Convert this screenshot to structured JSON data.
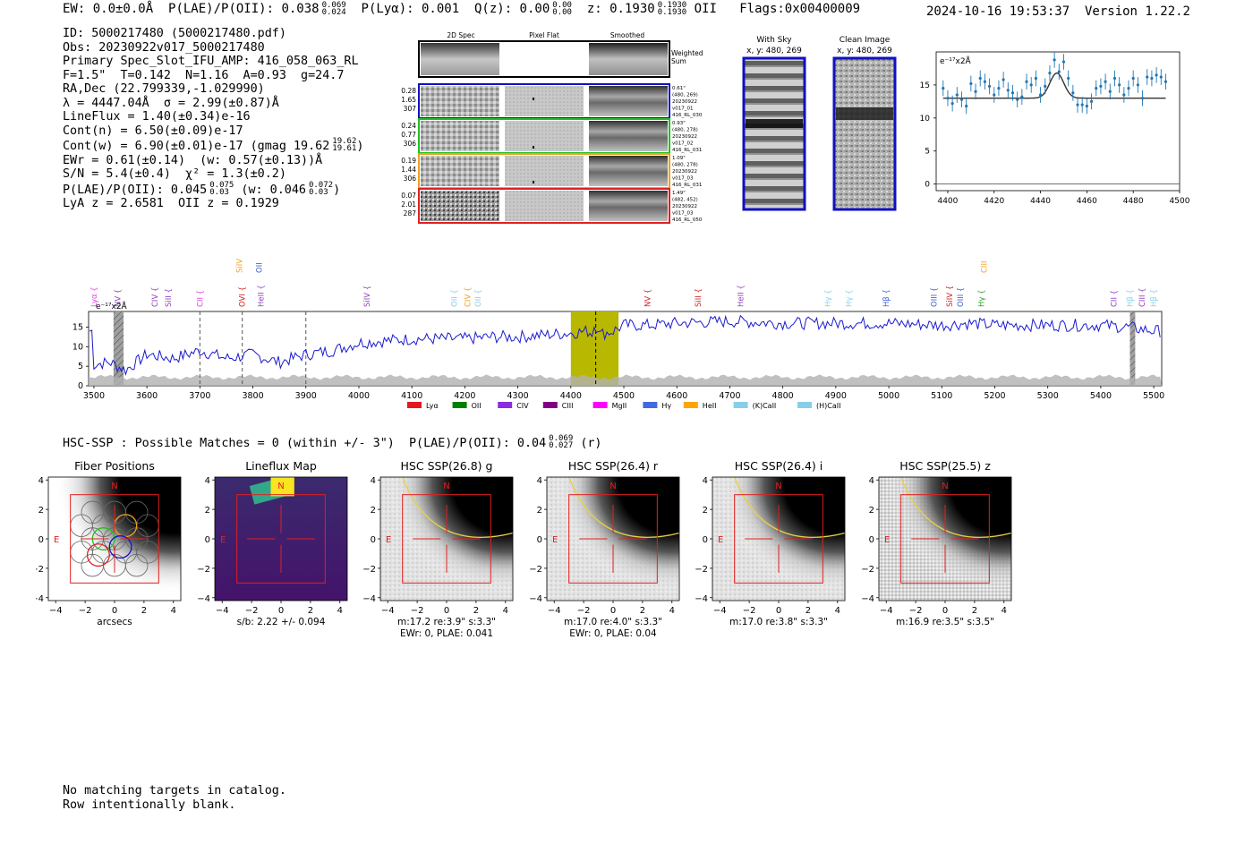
{
  "header": {
    "summary_text": "EW: 0.0±0.0Å  P(LAE)/P(OII): 0.038 0.069/0.024  P(Lyα): 0.001  Q(z): 0.00 0.00/0.00  z: 0.1930 0.1930/0.1930 OII  Flags:0x00400009",
    "ew": "EW: 0.0±0.0Å",
    "plae": "P(LAE)/P(OII): 0.038",
    "plae_hi": "0.069",
    "plae_lo": "0.024",
    "plya": "P(Lyα): 0.001",
    "qz": "Q(z): 0.00",
    "qz_hi": "0.00",
    "qz_lo": "0.00",
    "z": "z: 0.1930",
    "z_hi": "0.1930",
    "z_lo": "0.1930",
    "line": "OII",
    "flags": "Flags:0x00400009",
    "datetime_version": "2024-10-16 19:53:37  Version 1.22.2"
  },
  "info": {
    "id": "ID: 5000217480 (5000217480.pdf)",
    "obs": "Obs: 20230922v017_5000217480",
    "primary": "Primary Spec_Slot_IFU_AMP: 416_058_063_RL",
    "params": "F=1.5\"  T=0.142  N=1.16  A=0.93  g=24.7",
    "radec": "RA,Dec (22.799339,-1.029990)",
    "lambda": "λ = 4447.04Å  σ = 2.99(±0.87)Å",
    "lineflux": "LineFlux = 1.40(±0.34)e-16",
    "contn": "Cont(n) = 6.50(±0.09)e-17",
    "contw": "Cont(w) = 6.90(±0.01)e-17 (gmag 19.62",
    "contw_hi": "19.62",
    "contw_lo": "19.61",
    "contw_end": ")",
    "ewr": "EWr = 0.61(±0.14)  (w: 0.57(±0.13))Å",
    "sn": "S/N = 5.4(±0.4)  χ² = 1.3(±0.2)",
    "plae2": "P(LAE)/P(OII): 0.045",
    "plae2_hi": "0.075",
    "plae2_lo": "0.03",
    "plae2_w": "(w: 0.046",
    "plae2_w_hi": "0.072",
    "plae2_w_lo": "0.03",
    "plae2_end": ")",
    "lyaz": "LyA z = 2.6581  OII z = 0.1929"
  },
  "cutouts": {
    "col_titles": [
      "2D Spec",
      "Pixel Flat",
      "Smoothed"
    ],
    "weighted_sum": [
      "Weighted",
      "Sum"
    ],
    "rows": [
      {
        "left": [
          "0.28",
          "1.65",
          "307"
        ],
        "right": [
          "0.61\"",
          "(480, 269)",
          "20230922",
          "v017_01",
          "416_RL_030"
        ],
        "color": "#1010c0"
      },
      {
        "left": [
          "0.24",
          "0.77",
          "306"
        ],
        "right": [
          "0.93\"",
          "(480, 278)",
          "20230922",
          "v017_02",
          "416_RL_031"
        ],
        "color": "#20c020"
      },
      {
        "left": [
          "0.19",
          "1.44",
          "306"
        ],
        "right": [
          "1.09\"",
          "(480, 278)",
          "20230922",
          "v017_03",
          "416_RL_031"
        ],
        "color": "#f0a020"
      },
      {
        "left": [
          "0.07",
          "2.01",
          "287"
        ],
        "right": [
          "1.49\"",
          "(482, 452)",
          "20230922",
          "v017_03",
          "416_RL_050"
        ],
        "color": "#e02020"
      }
    ]
  },
  "sky_panels": {
    "with_sky": {
      "title": "With Sky",
      "coords": "x, y: 480, 269"
    },
    "clean": {
      "title": "Clean Image",
      "coords": "x, y: 480, 269"
    }
  },
  "colors": {
    "spectrum": "#1a1ad0",
    "fit_points": "#1f77b4",
    "noise_fill": "#b0b0b0",
    "highlight_band": "#b8b800",
    "fiber_red": "#e02020",
    "fiber_blue": "#1010d0",
    "fiber_green": "#20c020",
    "fiber_orange": "#f0a020"
  },
  "chart_data": [
    {
      "type": "line",
      "name": "line-fit",
      "ylabel": "e⁻¹⁷x2Å",
      "xlim": [
        4395,
        4500
      ],
      "ylim": [
        -1,
        20
      ],
      "xticks": [
        4400,
        4420,
        4440,
        4460,
        4480,
        4500
      ],
      "yticks": [
        0,
        5,
        10,
        15
      ],
      "points_x": [
        4398,
        4400,
        4402,
        4404,
        4406,
        4408,
        4410,
        4412,
        4414,
        4416,
        4418,
        4420,
        4422,
        4424,
        4426,
        4428,
        4430,
        4432,
        4434,
        4436,
        4438,
        4440,
        4442,
        4444,
        4446,
        4448,
        4450,
        4452,
        4454,
        4456,
        4458,
        4460,
        4462,
        4464,
        4466,
        4468,
        4470,
        4472,
        4474,
        4476,
        4478,
        4480,
        4482,
        4484,
        4486,
        4488,
        4490,
        4492,
        4494
      ],
      "points_y": [
        14.5,
        13.0,
        12.2,
        13.5,
        12.8,
        11.8,
        15.2,
        14.0,
        16.0,
        15.5,
        14.8,
        13.5,
        14.5,
        15.8,
        14.2,
        13.8,
        12.8,
        13.2,
        15.5,
        15.0,
        16.0,
        13.5,
        14.8,
        16.8,
        18.8,
        17.0,
        18.5,
        16.0,
        13.8,
        12.0,
        12.0,
        11.8,
        12.5,
        14.5,
        14.8,
        15.5,
        14.0,
        16.0,
        15.0,
        13.5,
        14.5,
        16.0,
        15.0,
        13.0,
        16.2,
        16.0,
        16.5,
        16.2,
        15.5
      ],
      "fit_continuum": 13.0,
      "fit_peak": 4447.04,
      "fit_amplitude": 3.8,
      "fit_sigma": 2.99
    },
    {
      "type": "line",
      "name": "full-spectrum",
      "ylabel": "e⁻¹⁷x2Å",
      "xlim": [
        3490,
        5515
      ],
      "ylim": [
        0,
        19
      ],
      "xticks": [
        3500,
        3600,
        3700,
        3800,
        3900,
        4000,
        4100,
        4200,
        4300,
        4400,
        4500,
        4600,
        4700,
        4800,
        4900,
        5000,
        5100,
        5200,
        5300,
        5400,
        5500
      ],
      "yticks": [
        0,
        5,
        10,
        15
      ],
      "spectrum_anchor_x": [
        3500,
        3530,
        3560,
        3600,
        3650,
        3700,
        3750,
        3800,
        3850,
        3900,
        3950,
        4000,
        4050,
        4100,
        4150,
        4200,
        4250,
        4300,
        4350,
        4400,
        4430,
        4450,
        4480,
        4500,
        4550,
        4600,
        4700,
        4800,
        4900,
        5000,
        5100,
        5150,
        5200,
        5300,
        5400,
        5450,
        5500,
        5515
      ],
      "spectrum_anchor_y": [
        5.5,
        6,
        4,
        8,
        7,
        9,
        7,
        8,
        6,
        8,
        9,
        11,
        11.5,
        12,
        12,
        12,
        12.5,
        12.5,
        13,
        13.5,
        14,
        13,
        14,
        15.5,
        15.5,
        16,
        16.5,
        16,
        16,
        16,
        15.5,
        16,
        15.5,
        15.5,
        15.5,
        15,
        14,
        14
      ],
      "noise_level": 2.2,
      "highlight_band": [
        4400,
        4490
      ],
      "dashed_lines": [
        3700,
        3780,
        3900,
        4447
      ],
      "hatched_bands": [
        [
          3537,
          3556
        ],
        [
          5455,
          5465
        ]
      ],
      "line_markers_lower": [
        {
          "label": "Lyα",
          "x": 3500,
          "color": "#e040e0"
        },
        {
          "label": "NV",
          "x": 3545,
          "color": "#9040c0"
        },
        {
          "label": "CIV",
          "x": 3615,
          "color": "#9040c0"
        },
        {
          "label": "SiII",
          "x": 3640,
          "color": "#9040c0"
        },
        {
          "label": "CII",
          "x": 3700,
          "color": "#e040e0"
        },
        {
          "label": "OVI",
          "x": 3780,
          "color": "#d02020"
        },
        {
          "label": "HeII",
          "x": 3815,
          "color": "#9040c0"
        },
        {
          "label": "SiIV",
          "x": 4015,
          "color": "#9040c0"
        },
        {
          "label": "OII",
          "x": 4180,
          "color": "#87ceeb"
        },
        {
          "label": "CIV",
          "x": 4205,
          "color": "#f0a020"
        },
        {
          "label": "OII",
          "x": 4225,
          "color": "#87ceeb"
        },
        {
          "label": "NV",
          "x": 4545,
          "color": "#d02020"
        },
        {
          "label": "SiII",
          "x": 4640,
          "color": "#d02020"
        },
        {
          "label": "HeII",
          "x": 4720,
          "color": "#9040c0"
        },
        {
          "label": "Hγ",
          "x": 4885,
          "color": "#87ceeb"
        },
        {
          "label": "Hγ",
          "x": 4925,
          "color": "#87ceeb"
        },
        {
          "label": "Hβ",
          "x": 4995,
          "color": "#4060d0"
        },
        {
          "label": "OIII",
          "x": 5085,
          "color": "#4060d0"
        },
        {
          "label": "SiIV",
          "x": 5115,
          "color": "#d02020"
        },
        {
          "label": "OIII",
          "x": 5135,
          "color": "#4060d0"
        },
        {
          "label": "Hγ",
          "x": 5175,
          "color": "#20a020"
        },
        {
          "label": "CII",
          "x": 5425,
          "color": "#9040c0"
        },
        {
          "label": "Hβ",
          "x": 5455,
          "color": "#87ceeb"
        },
        {
          "label": "CIII",
          "x": 5478,
          "color": "#9040c0"
        },
        {
          "label": "Hβ",
          "x": 5500,
          "color": "#87ceeb"
        }
      ],
      "line_markers_upper": [
        {
          "label": "SiIV",
          "x": 3775,
          "color": "#f0a020"
        },
        {
          "label": "OII",
          "x": 3812,
          "color": "#4060d0"
        },
        {
          "label": "CIII",
          "x": 5180,
          "color": "#f0a020"
        }
      ],
      "legend": [
        {
          "label": "Lyα",
          "color": "#e41a1c"
        },
        {
          "label": "OII",
          "color": "#008000"
        },
        {
          "label": "CIV",
          "color": "#8a2be2"
        },
        {
          "label": "CIII",
          "color": "#800080"
        },
        {
          "label": "MgII",
          "color": "#ff00ff"
        },
        {
          "label": "Hγ",
          "color": "#4169e1"
        },
        {
          "label": "HeII",
          "color": "#ffa500"
        },
        {
          "label": "(K)CaII",
          "color": "#87ceeb"
        },
        {
          "label": "(H)CaII",
          "color": "#87ceeb"
        }
      ]
    }
  ],
  "hsc": {
    "summary": "HSC-SSP : Possible Matches = 0 (within +/- 3\")  P(LAE)/P(OII): 0.04",
    "plae_hi": "0.069",
    "plae_lo": "0.027",
    "band_note": "(r)",
    "panels": [
      {
        "title": "Fiber Positions",
        "xlabel": "arcsecs",
        "note2": "",
        "kind": "fibers"
      },
      {
        "title": "Lineflux Map",
        "xlabel": "s/b: 2.22 +/- 0.094",
        "note2": "",
        "kind": "lineflux"
      },
      {
        "title": "HSC SSP(26.8) g",
        "xlabel": "m:17.2  re:3.9\"  s:3.3\"",
        "note2": "EWr: 0, PLAE: 0.041",
        "kind": "image"
      },
      {
        "title": "HSC SSP(26.4) r",
        "xlabel": "m:17.0  re:4.0\"  s:3.3\"",
        "note2": "EWr: 0, PLAE: 0.04",
        "kind": "image"
      },
      {
        "title": "HSC SSP(26.4) i",
        "xlabel": "m:17.0  re:3.8\"  s:3.3\"",
        "note2": "",
        "kind": "image"
      },
      {
        "title": "HSC SSP(25.5) z",
        "xlabel": "m:16.9  re:3.5\"  s:3.5\"",
        "note2": "",
        "kind": "image"
      }
    ],
    "ticks": [
      "−4",
      "−2",
      "0",
      "2",
      "4"
    ],
    "north_label": "N",
    "east_label": "E"
  },
  "footer": {
    "line1": "No matching targets in catalog.",
    "line2": "Row intentionally blank."
  }
}
